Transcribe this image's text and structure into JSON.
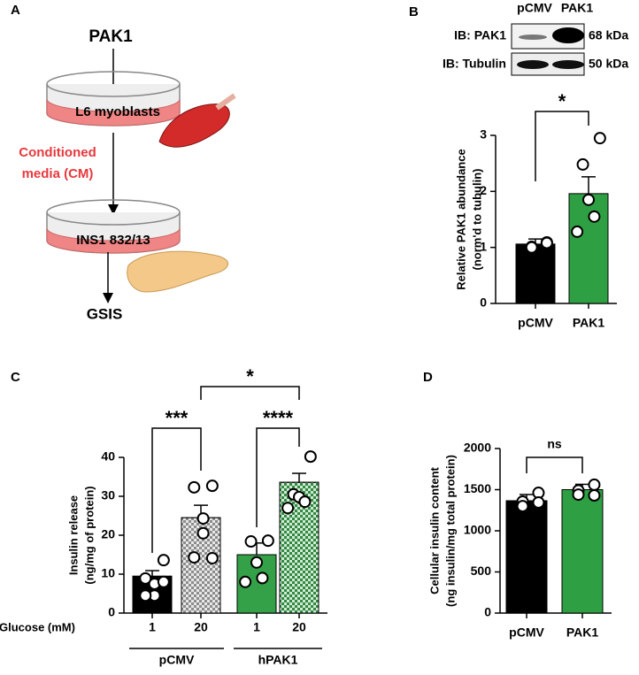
{
  "panels": {
    "a": "A",
    "b": "B",
    "c": "C",
    "d": "D"
  },
  "diagram": {
    "top": "PAK1",
    "dish1": "L6 myoblasts",
    "media": [
      "Conditioned",
      "media (CM)"
    ],
    "dish2": "INS1 832/13",
    "bottom": "GSIS"
  },
  "blot": {
    "columns": [
      "pCMV",
      "PAK1"
    ],
    "rows": [
      {
        "label": "IB: PAK1",
        "size": "68 kDa"
      },
      {
        "label": "IB: Tubulin",
        "size": "50 kDa"
      }
    ]
  },
  "chart_data": [
    {
      "type": "bar",
      "ylabel": [
        "Relative  PAK1 abundance",
        "(norm'd to tubulin)"
      ],
      "categories": [
        "pCMV",
        "PAK1"
      ],
      "values": [
        1.06,
        1.96
      ],
      "errors": [
        0.09,
        0.3
      ],
      "points": [
        [
          1.09,
          1.01,
          1.0,
          1.08
        ],
        [
          2.95,
          2.48,
          1.85,
          1.55,
          1.28
        ]
      ],
      "colors": [
        "#000000",
        "#2ea043"
      ],
      "ylim": [
        0,
        3
      ],
      "yticks": [
        0,
        1,
        2,
        3
      ],
      "significance": [
        "*"
      ]
    },
    {
      "type": "bar",
      "ylabel": [
        "Insulin release",
        "(ng/mg of protein)"
      ],
      "xlabel": "Glucose (mM)",
      "categories": [
        "1",
        "20",
        "1",
        "20"
      ],
      "groups": [
        "pCMV",
        "hPAK1"
      ],
      "values": [
        9.5,
        24.5,
        15,
        33.6
      ],
      "errors": [
        1.4,
        3.2,
        3,
        2.3
      ],
      "points": [
        [
          13.6,
          8.9,
          7.5,
          4.5,
          4.5,
          8
        ],
        [
          32.7,
          32.3,
          24.3,
          20.5,
          14.3,
          14.1
        ],
        [
          18.6,
          18.4,
          13,
          9,
          8
        ],
        [
          40.2,
          30.5,
          29.8,
          28.6,
          27
        ]
      ],
      "colors": [
        "#000000",
        "#8c8c8c",
        "#34a047",
        "#2e8b3e"
      ],
      "textured": [
        false,
        true,
        false,
        true
      ],
      "ylim": [
        0,
        40
      ],
      "yticks": [
        0,
        10,
        20,
        30,
        40
      ],
      "significance": [
        "***",
        "****",
        "*"
      ]
    },
    {
      "type": "bar",
      "ylabel": [
        "Cellular insulin content",
        "(ng insulin/mg total protein)"
      ],
      "categories": [
        "pCMV",
        "PAK1"
      ],
      "values": [
        1366,
        1500
      ],
      "errors": [
        75,
        65
      ],
      "points": [
        [
          1462,
          1355,
          1300,
          1344
        ],
        [
          1560,
          1490,
          1440,
          1430
        ]
      ],
      "colors": [
        "#000000",
        "#2ea043"
      ],
      "ylim": [
        0,
        2000
      ],
      "yticks": [
        0,
        500,
        1000,
        1500,
        2000
      ],
      "significance": [
        "ns"
      ]
    }
  ]
}
